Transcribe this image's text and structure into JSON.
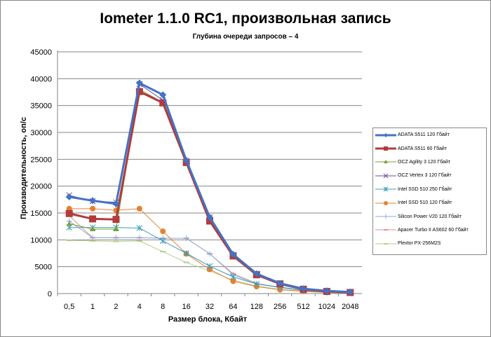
{
  "chart_data": {
    "type": "line",
    "title": "Iometer 1.1.0 RC1, произвольная запись",
    "subtitle": "Глубина очереди запросов – 4",
    "xlabel": "Размер блока, Кбайт",
    "ylabel": "Производительность, оп/с",
    "categories": [
      "0,5",
      "1",
      "2",
      "4",
      "8",
      "16",
      "32",
      "64",
      "128",
      "256",
      "512",
      "1024",
      "2048"
    ],
    "ylim": [
      0,
      45000
    ],
    "yticks": [
      "0",
      "5000",
      "10000",
      "15000",
      "20000",
      "25000",
      "30000",
      "35000",
      "40000",
      "45000"
    ],
    "grid": true,
    "legend_position": "right",
    "series": [
      {
        "name": "ADATA  S511 120 Гбайт",
        "color": "#4472C4",
        "marker": "diamond",
        "width": 3,
        "values": [
          18000,
          17300,
          16700,
          39200,
          37000,
          24800,
          14200,
          7300,
          3700,
          1900,
          900,
          500,
          300
        ]
      },
      {
        "name": "ADATA  S511 60 Гбайт",
        "color": "#B23B3B",
        "marker": "square",
        "width": 3,
        "values": [
          14900,
          13900,
          13800,
          37600,
          35500,
          24400,
          13500,
          7000,
          3500,
          1800,
          800,
          400,
          200
        ]
      },
      {
        "name": "OCZ Agility  3 120 Гбайт",
        "color": "#7DA13A",
        "marker": "triangle",
        "width": 1,
        "values": [
          13000,
          12000,
          12000,
          38000,
          35600,
          24800,
          14000,
          7000,
          3600,
          1700,
          700,
          400,
          200
        ]
      },
      {
        "name": "OCZ Vertex  3 120 Гбайт",
        "color": "#6E4F9C",
        "marker": "x",
        "width": 1,
        "values": [
          18300,
          17200,
          17000,
          39000,
          36000,
          24700,
          14200,
          7200,
          3700,
          1800,
          800,
          400,
          200
        ]
      },
      {
        "name": "Intel  SSD 510 250 Гбайт",
        "color": "#3A9DB8",
        "marker": "star",
        "width": 1,
        "values": [
          12300,
          12300,
          12300,
          12200,
          9800,
          7500,
          5100,
          3100,
          1800,
          1200,
          600,
          300,
          200
        ]
      },
      {
        "name": "Intel  SSD 510 120 Гбайт",
        "color": "#E4812F",
        "marker": "circle",
        "width": 1,
        "values": [
          15800,
          15800,
          15500,
          15800,
          11600,
          7400,
          4500,
          2300,
          1300,
          700,
          400,
          200,
          100
        ]
      },
      {
        "name": "Silicon  Power  V20 120 Гбайт",
        "color": "#8EA9DB",
        "marker": "plus",
        "width": 1,
        "values": [
          13500,
          10400,
          10400,
          10400,
          10300,
          10300,
          7400,
          3500,
          1800,
          1100,
          600,
          400,
          200
        ]
      },
      {
        "name": "Apacer  Turbo  II AS602 60 Гбайт",
        "color": "#D99694",
        "marker": "dash",
        "width": 1,
        "values": [
          14500,
          10400,
          10400,
          10400,
          10300,
          10300,
          7400,
          3700,
          1900,
          1100,
          500,
          300,
          200
        ]
      },
      {
        "name": "Plextor PX-256M2S",
        "color": "#B5CE8A",
        "marker": "dash",
        "width": 1,
        "values": [
          9900,
          9800,
          9700,
          9800,
          7800,
          5800,
          4200,
          2500,
          1400,
          800,
          400,
          200,
          100
        ]
      }
    ]
  }
}
